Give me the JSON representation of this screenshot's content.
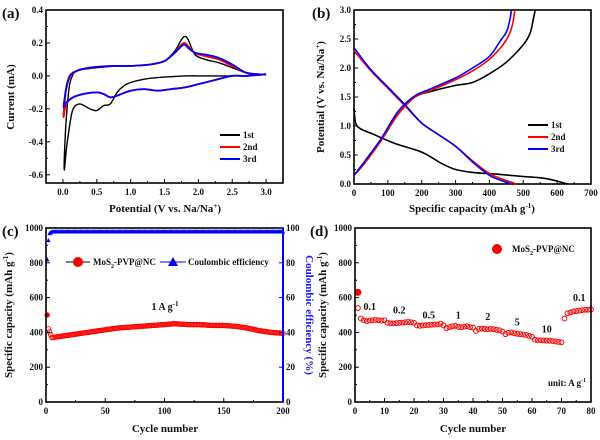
{
  "chart_data": [
    {
      "id": "a",
      "panel_label": "(a)",
      "type": "line",
      "title": "",
      "xlabel": "Potential (V vs. Na/Na",
      "xlabel_sup": "+",
      "xlabel_end": ")",
      "ylabel": "Current (mA)",
      "xlim": [
        -0.25,
        3.25
      ],
      "ylim": [
        -0.65,
        0.4
      ],
      "xticks": [
        0.0,
        0.5,
        1.0,
        1.5,
        2.0,
        2.5,
        3.0
      ],
      "xtick_labels": [
        "0.0",
        "0.5",
        "1.0",
        "1.5",
        "2.0",
        "2.5",
        "3.0"
      ],
      "yticks": [
        -0.6,
        -0.4,
        -0.2,
        0.0,
        0.2,
        0.4
      ],
      "ytick_labels": [
        "-0.6",
        "-0.4",
        "-0.2",
        "0.0",
        "0.2",
        "0.4"
      ],
      "legend_position": "bottom-right",
      "series": [
        {
          "name": "1st",
          "color": "#000000",
          "x": [
            3.0,
            2.7,
            2.5,
            2.2,
            2.0,
            1.8,
            1.6,
            1.4,
            1.2,
            1.0,
            0.9,
            0.8,
            0.7,
            0.6,
            0.5,
            0.4,
            0.25,
            0.15,
            0.1,
            0.05,
            0.02,
            0.03,
            0.06,
            0.1,
            0.15,
            0.2,
            0.3,
            0.5,
            0.8,
            1.0,
            1.3,
            1.5,
            1.65,
            1.75,
            1.8,
            1.85,
            1.95,
            2.1,
            2.3,
            2.5,
            2.7,
            2.9,
            3.0
          ],
          "y": [
            0.01,
            0.0,
            0.0,
            0.0,
            0.0,
            0.0,
            -0.005,
            -0.01,
            -0.02,
            -0.04,
            -0.06,
            -0.1,
            -0.17,
            -0.18,
            -0.21,
            -0.2,
            -0.17,
            -0.2,
            -0.3,
            -0.45,
            -0.57,
            -0.4,
            -0.2,
            -0.05,
            0.01,
            0.03,
            0.04,
            0.05,
            0.06,
            0.06,
            0.07,
            0.09,
            0.15,
            0.22,
            0.24,
            0.22,
            0.13,
            0.1,
            0.08,
            0.05,
            0.02,
            0.01,
            0.01
          ]
        },
        {
          "name": "2nd",
          "color": "#ff0000",
          "x": [
            3.0,
            2.7,
            2.5,
            2.2,
            2.0,
            1.8,
            1.6,
            1.4,
            1.2,
            1.0,
            0.8,
            0.7,
            0.6,
            0.5,
            0.3,
            0.15,
            0.05,
            0.01,
            0.02,
            0.05,
            0.1,
            0.2,
            0.4,
            0.7,
            1.0,
            1.3,
            1.5,
            1.65,
            1.75,
            1.8,
            1.85,
            1.95,
            2.1,
            2.3,
            2.5,
            2.7,
            2.9,
            3.0
          ],
          "y": [
            0.01,
            0.0,
            0.0,
            -0.03,
            -0.05,
            -0.07,
            -0.08,
            -0.09,
            -0.08,
            -0.09,
            -0.12,
            -0.13,
            -0.11,
            -0.1,
            -0.11,
            -0.13,
            -0.17,
            -0.25,
            -0.18,
            -0.08,
            -0.01,
            0.03,
            0.05,
            0.06,
            0.06,
            0.07,
            0.09,
            0.14,
            0.19,
            0.2,
            0.18,
            0.14,
            0.12,
            0.1,
            0.06,
            0.02,
            0.01,
            0.01
          ]
        },
        {
          "name": "3rd",
          "color": "#0000ff",
          "x": [
            3.0,
            2.7,
            2.5,
            2.2,
            2.0,
            1.8,
            1.6,
            1.4,
            1.2,
            1.0,
            0.8,
            0.7,
            0.6,
            0.5,
            0.3,
            0.15,
            0.05,
            0.01,
            0.02,
            0.05,
            0.1,
            0.2,
            0.4,
            0.7,
            1.0,
            1.3,
            1.5,
            1.65,
            1.75,
            1.8,
            1.85,
            1.95,
            2.1,
            2.3,
            2.5,
            2.7,
            2.9,
            3.0
          ],
          "y": [
            0.01,
            0.0,
            0.0,
            -0.03,
            -0.05,
            -0.07,
            -0.08,
            -0.09,
            -0.08,
            -0.09,
            -0.12,
            -0.13,
            -0.11,
            -0.1,
            -0.11,
            -0.13,
            -0.16,
            -0.19,
            -0.15,
            -0.07,
            0.0,
            0.03,
            0.05,
            0.06,
            0.06,
            0.07,
            0.09,
            0.14,
            0.18,
            0.19,
            0.17,
            0.14,
            0.13,
            0.11,
            0.07,
            0.02,
            0.01,
            0.01
          ]
        }
      ]
    },
    {
      "id": "b",
      "panel_label": "(b)",
      "type": "line",
      "title": "",
      "xlabel": "Specific capacity (mAh g",
      "xlabel_sup": "-1",
      "xlabel_end": ")",
      "ylabel": "Potential (V vs. Na/Na",
      "ylabel_sup": "+",
      "ylabel_end": ")",
      "xlim": [
        0,
        700
      ],
      "ylim": [
        0,
        3.0
      ],
      "xticks": [
        0,
        100,
        200,
        300,
        400,
        500,
        600,
        700
      ],
      "xtick_labels": [
        "0",
        "100",
        "200",
        "300",
        "400",
        "500",
        "600",
        "700"
      ],
      "yticks": [
        0.0,
        0.5,
        1.0,
        1.5,
        2.0,
        2.5,
        3.0
      ],
      "ytick_labels": [
        "0.0",
        "0.5",
        "1.0",
        "1.5",
        "2.0",
        "2.5",
        "3.0"
      ],
      "legend_position": "center-right",
      "series": [
        {
          "name": "1st",
          "color": "#000000",
          "discharge": {
            "x": [
              0,
              5,
              20,
              60,
              120,
              200,
              260,
              300,
              350,
              420,
              500,
              560,
              600,
              630
            ],
            "y": [
              1.3,
              1.05,
              0.95,
              0.85,
              0.7,
              0.55,
              0.35,
              0.25,
              0.2,
              0.17,
              0.13,
              0.1,
              0.05,
              0.0
            ]
          },
          "charge": {
            "x": [
              0,
              30,
              80,
              130,
              180,
              230,
              300,
              350,
              400,
              450,
              500,
              520,
              530,
              535
            ],
            "y": [
              0.15,
              0.35,
              0.75,
              1.2,
              1.5,
              1.6,
              1.7,
              1.75,
              1.9,
              2.1,
              2.4,
              2.6,
              2.85,
              3.0
            ]
          }
        },
        {
          "name": "2nd",
          "color": "#ff0000",
          "discharge": {
            "x": [
              0,
              50,
              100,
              150,
              200,
              250,
              300,
              350,
              400,
              440,
              470,
              480
            ],
            "y": [
              2.3,
              1.95,
              1.65,
              1.35,
              1.05,
              0.85,
              0.65,
              0.4,
              0.18,
              0.08,
              0.02,
              0.0
            ]
          },
          "charge": {
            "x": [
              0,
              30,
              80,
              130,
              180,
              230,
              300,
              350,
              400,
              440,
              460,
              470,
              475
            ],
            "y": [
              0.15,
              0.35,
              0.75,
              1.2,
              1.5,
              1.62,
              1.8,
              1.95,
              2.15,
              2.4,
              2.6,
              2.8,
              3.0
            ]
          }
        },
        {
          "name": "3rd",
          "color": "#0000ff",
          "discharge": {
            "x": [
              0,
              50,
              100,
              150,
              200,
              250,
              300,
              350,
              400,
              430,
              455,
              465
            ],
            "y": [
              2.35,
              1.97,
              1.67,
              1.37,
              1.05,
              0.85,
              0.65,
              0.38,
              0.15,
              0.07,
              0.02,
              0.0
            ]
          },
          "charge": {
            "x": [
              0,
              30,
              80,
              130,
              180,
              230,
              300,
              350,
              400,
              430,
              450,
              460,
              465
            ],
            "y": [
              0.15,
              0.38,
              0.78,
              1.25,
              1.52,
              1.65,
              1.83,
              2.0,
              2.2,
              2.45,
              2.62,
              2.82,
              3.0
            ]
          }
        }
      ]
    },
    {
      "id": "c",
      "panel_label": "(c)",
      "type": "scatter",
      "title": "",
      "xlabel": "Cycle number",
      "ylabel": "Specific capacity (mAh g",
      "ylabel_sup": "-1",
      "ylabel_end": ")",
      "y2label": "Coulombic efficiency (%)",
      "xlim": [
        0,
        200
      ],
      "ylim": [
        0,
        1000
      ],
      "y2lim": [
        0,
        100
      ],
      "xticks": [
        0,
        50,
        100,
        150,
        200
      ],
      "xtick_labels": [
        "0",
        "50",
        "100",
        "150",
        "200"
      ],
      "yticks": [
        0,
        200,
        400,
        600,
        800,
        1000
      ],
      "ytick_labels": [
        "0",
        "200",
        "400",
        "600",
        "800",
        "1000"
      ],
      "y2ticks": [
        0,
        20,
        40,
        60,
        80,
        100
      ],
      "y2tick_labels": [
        "0",
        "20",
        "40",
        "60",
        "80",
        "100"
      ],
      "annotation": "1 A g",
      "annotation_sup": "-1",
      "legend_position": "top",
      "series": [
        {
          "name": "MoS2-PVP@NC",
          "name_main": "MoS",
          "name_sub": "2",
          "name_rest": "-PVP@NC",
          "color": "#ff0000",
          "axis": "left",
          "x": [
            1,
            2,
            5,
            10,
            20,
            30,
            40,
            50,
            60,
            70,
            80,
            90,
            100,
            108,
            120,
            130,
            140,
            150,
            160,
            170,
            180,
            190,
            200
          ],
          "y": [
            500,
            420,
            370,
            375,
            385,
            395,
            405,
            415,
            425,
            430,
            435,
            440,
            445,
            450,
            445,
            445,
            440,
            440,
            435,
            425,
            410,
            400,
            395
          ]
        },
        {
          "name": "Coulombic efficiency",
          "color": "#0000ff",
          "axis": "right",
          "x": [
            1,
            2,
            3,
            5,
            10,
            50,
            100,
            150,
            200
          ],
          "y": [
            82,
            93,
            97,
            98,
            98,
            98,
            98,
            98,
            98
          ]
        }
      ]
    },
    {
      "id": "d",
      "panel_label": "(d)",
      "type": "scatter",
      "title": "",
      "xlabel": "Cycle number",
      "ylabel": "Specific capacity (mAh g",
      "ylabel_sup": "-1",
      "ylabel_end": ")",
      "xlim": [
        0,
        80
      ],
      "ylim": [
        0,
        1000
      ],
      "xticks": [
        0,
        10,
        20,
        30,
        40,
        50,
        60,
        70,
        80
      ],
      "xtick_labels": [
        "0",
        "10",
        "20",
        "30",
        "40",
        "50",
        "60",
        "70",
        "80"
      ],
      "yticks": [
        0,
        200,
        400,
        600,
        800,
        1000
      ],
      "ytick_labels": [
        "0",
        "200",
        "400",
        "600",
        "800",
        "1000"
      ],
      "legend_position": "top-right",
      "unit_note": "unit: A g",
      "unit_note_sup": "-1",
      "rate_labels": [
        {
          "text": "0.1",
          "x": 5,
          "y": 530
        },
        {
          "text": "0.2",
          "x": 15,
          "y": 510
        },
        {
          "text": "0.5",
          "x": 25,
          "y": 480
        },
        {
          "text": "1",
          "x": 35,
          "y": 480
        },
        {
          "text": "2",
          "x": 45,
          "y": 470
        },
        {
          "text": "5",
          "x": 55,
          "y": 440
        },
        {
          "text": "10",
          "x": 65,
          "y": 400
        },
        {
          "text": "0.1",
          "x": 76,
          "y": 580
        }
      ],
      "series": [
        {
          "name": "MoS2-PVP@NC",
          "name_main": "MoS",
          "name_sub": "2",
          "name_rest": "-PVP@NC",
          "color": "#ff0000",
          "x": [
            1,
            1,
            2,
            3,
            4,
            5,
            6,
            7,
            8,
            9,
            10,
            11,
            12,
            13,
            14,
            15,
            16,
            17,
            18,
            19,
            20,
            21,
            22,
            23,
            24,
            25,
            26,
            27,
            28,
            29,
            30,
            31,
            32,
            33,
            34,
            35,
            36,
            37,
            38,
            39,
            40,
            41,
            42,
            43,
            44,
            45,
            46,
            47,
            48,
            49,
            50,
            51,
            52,
            53,
            54,
            55,
            56,
            57,
            58,
            59,
            60,
            61,
            62,
            63,
            64,
            65,
            66,
            67,
            68,
            69,
            70,
            71,
            72,
            73,
            74,
            75,
            76,
            77,
            78,
            79,
            80
          ],
          "y": [
            630,
            540,
            480,
            470,
            465,
            468,
            470,
            472,
            470,
            468,
            470,
            455,
            452,
            452,
            453,
            455,
            456,
            458,
            460,
            458,
            455,
            440,
            438,
            440,
            442,
            443,
            444,
            445,
            446,
            450,
            440,
            425,
            430,
            435,
            438,
            432,
            430,
            433,
            435,
            430,
            428,
            408,
            420,
            422,
            420,
            418,
            420,
            418,
            415,
            412,
            405,
            390,
            398,
            400,
            395,
            392,
            390,
            388,
            385,
            380,
            375,
            358,
            355,
            355,
            354,
            353,
            352,
            350,
            348,
            345,
            343,
            480,
            510,
            515,
            520,
            522,
            525,
            528,
            530,
            530,
            532
          ]
        }
      ]
    }
  ]
}
